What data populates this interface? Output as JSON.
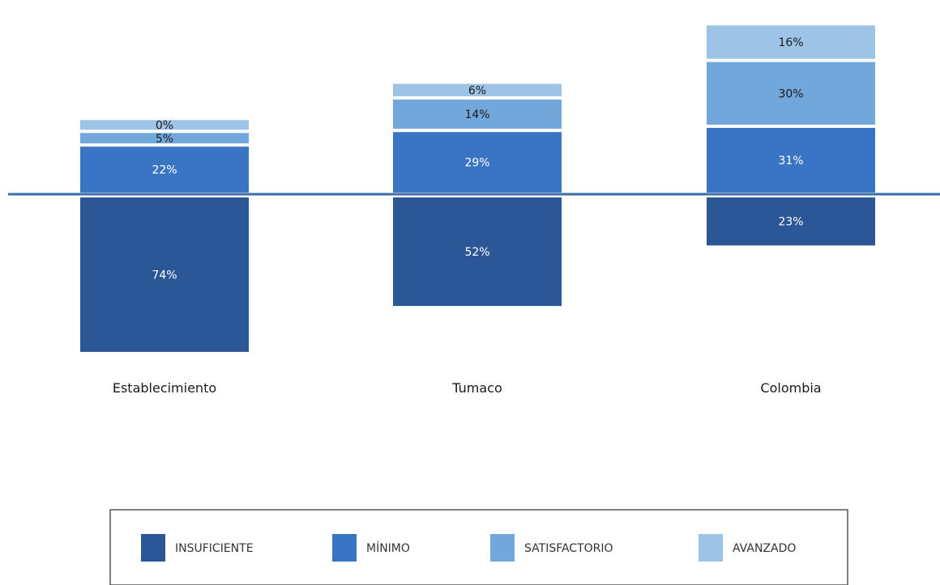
{
  "chart_data": {
    "type": "bar",
    "stacked": true,
    "diverging": true,
    "categories": [
      "Establecimiento",
      "Tumaco",
      "Colombia"
    ],
    "series": [
      {
        "name": "INSUFICIENTE",
        "values": [
          74,
          52,
          23
        ],
        "color": "#2b5797",
        "labels": [
          "74%",
          "52%",
          "23%"
        ],
        "direction": "below"
      },
      {
        "name": "MÍNIMO",
        "values": [
          22,
          29,
          31
        ],
        "color": "#3a75c4",
        "labels": [
          "22%",
          "29%",
          "31%"
        ],
        "direction": "above"
      },
      {
        "name": "SATISFACTORIO",
        "values": [
          5,
          14,
          30
        ],
        "color": "#72a7dc",
        "labels": [
          "5%",
          "14%",
          "30%"
        ],
        "direction": "above"
      },
      {
        "name": "AVANZADO",
        "values": [
          0,
          6,
          16
        ],
        "color": "#9dc3e6",
        "labels": [
          "0%",
          "6%",
          "16%"
        ],
        "direction": "above"
      }
    ],
    "baseline_color": "#3a6ea5",
    "legend_position": "bottom",
    "grid": false
  }
}
